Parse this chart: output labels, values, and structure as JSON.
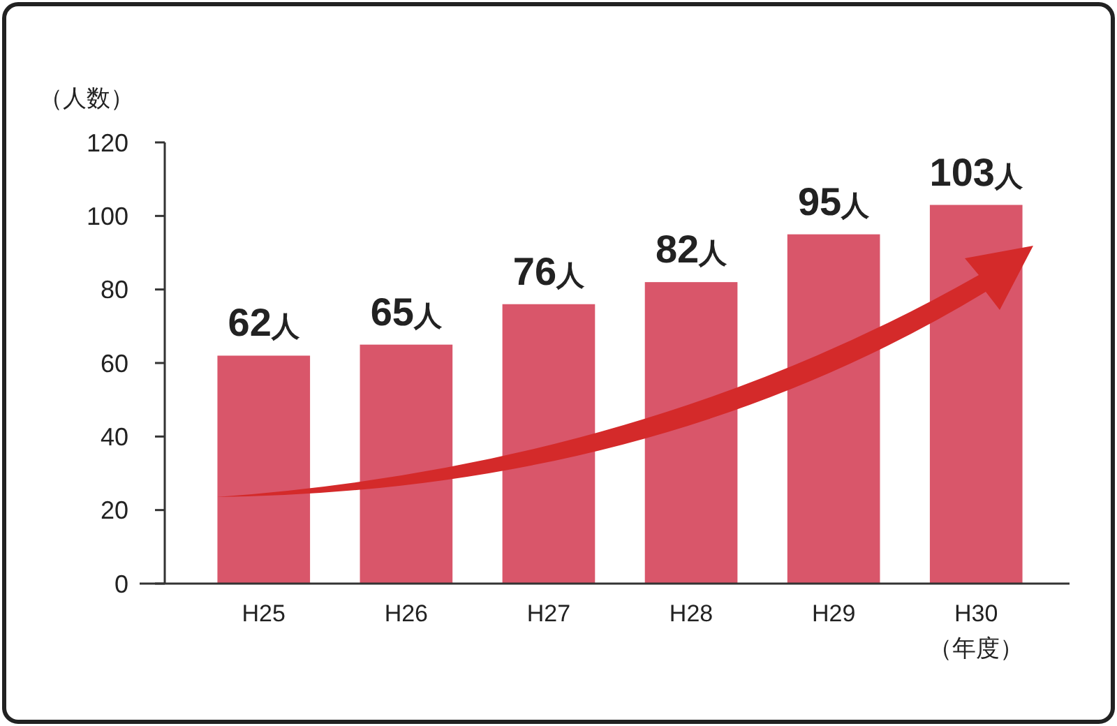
{
  "chart_data": {
    "type": "bar",
    "categories": [
      "H25",
      "H26",
      "H27",
      "H28",
      "H29",
      "H30"
    ],
    "values": [
      62,
      65,
      76,
      82,
      95,
      103
    ],
    "value_labels": [
      "62人",
      "65人",
      "76人",
      "82人",
      "95人",
      "103人"
    ],
    "color": "#d9566a",
    "ylabel": "（人数）",
    "xlabel": "（年度）",
    "ylim": [
      0,
      120
    ],
    "yticks": [
      0,
      20,
      40,
      60,
      80,
      100,
      120
    ],
    "grid": false
  }
}
